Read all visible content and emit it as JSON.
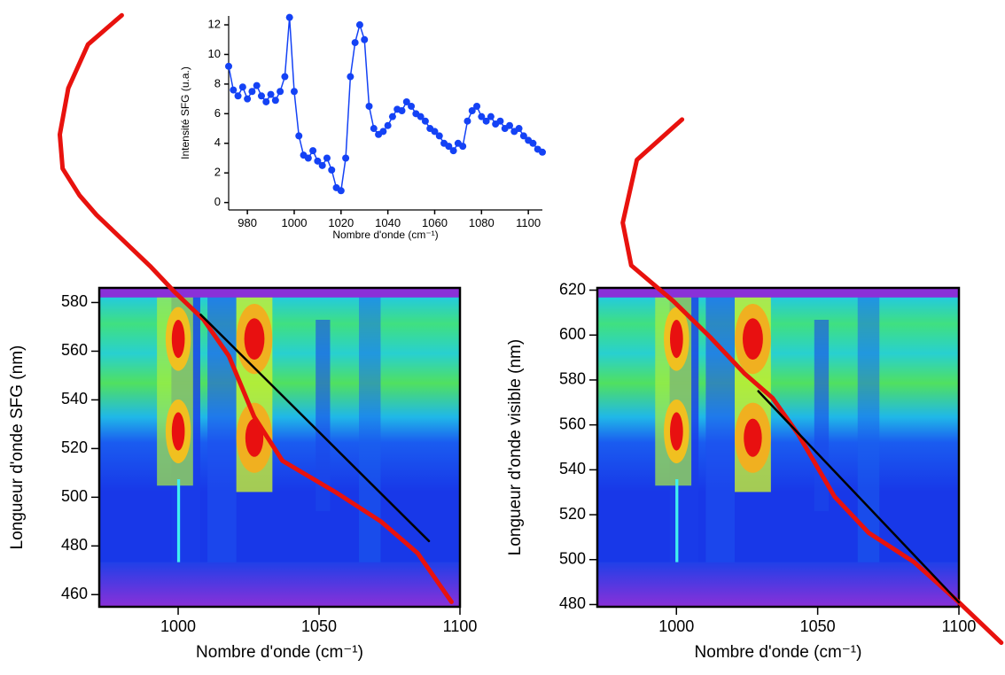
{
  "chart_data": [
    {
      "type": "line",
      "markers": true,
      "x_label": "Nombre d'onde (cm⁻¹)",
      "y_label": "Intensité SFG (u.a.)",
      "x": [
        972,
        974,
        976,
        978,
        980,
        982,
        984,
        986,
        988,
        990,
        992,
        994,
        996,
        998,
        1000,
        1002,
        1004,
        1006,
        1008,
        1010,
        1012,
        1014,
        1016,
        1018,
        1020,
        1022,
        1024,
        1026,
        1028,
        1030,
        1032,
        1034,
        1036,
        1038,
        1040,
        1042,
        1044,
        1046,
        1048,
        1050,
        1052,
        1054,
        1056,
        1058,
        1060,
        1062,
        1064,
        1066,
        1068,
        1070,
        1072,
        1074,
        1076,
        1078,
        1080,
        1082,
        1084,
        1086,
        1088,
        1090,
        1092,
        1094,
        1096,
        1098,
        1100,
        1102,
        1104,
        1106
      ],
      "series": [
        {
          "color": "#1442f5",
          "values": [
            9.2,
            7.6,
            7.2,
            7.8,
            7.0,
            7.5,
            7.9,
            7.2,
            6.8,
            7.3,
            6.9,
            7.5,
            8.5,
            12.5,
            7.5,
            4.5,
            3.2,
            3.0,
            3.5,
            2.8,
            2.5,
            3.0,
            2.2,
            1.0,
            0.8,
            3.0,
            8.5,
            10.8,
            12.0,
            11.0,
            6.5,
            5.0,
            4.6,
            4.8,
            5.2,
            5.8,
            6.3,
            6.2,
            6.8,
            6.5,
            6.0,
            5.8,
            5.5,
            5.0,
            4.8,
            4.5,
            4.0,
            3.8,
            3.5,
            4.0,
            3.8,
            5.5,
            6.2,
            6.5,
            5.8,
            5.5,
            5.8,
            5.3,
            5.5,
            5.0,
            5.2,
            4.8,
            5.0,
            4.5,
            4.2,
            4.0,
            3.6,
            3.4
          ]
        }
      ],
      "xlim": [
        972,
        1106
      ],
      "ylim": [
        -0.5,
        12.6
      ],
      "xticks": [
        980,
        1000,
        1020,
        1040,
        1060,
        1080,
        1100
      ],
      "yticks": [
        0,
        2,
        4,
        6,
        8,
        10,
        12
      ]
    },
    {
      "type": "heatmap",
      "x_label": "Nombre d'onde (cm⁻¹)",
      "y_label": "Longueur d'onde SFG (nm)",
      "xlim": [
        972,
        1100
      ],
      "ylim": [
        455,
        586
      ],
      "xticks": [
        1000,
        1050,
        1100
      ],
      "yticks": [
        460,
        480,
        500,
        520,
        540,
        560,
        580
      ],
      "series": [
        {
          "color": "#e8120e",
          "x": [
            980,
            968,
            961,
            958,
            959,
            965,
            971,
            990,
            999,
            1009,
            1018,
            1027,
            1037,
            1056,
            1072,
            1085,
            1097
          ],
          "values": [
            698,
            686,
            668,
            649,
            635,
            624,
            616,
            595,
            584,
            573,
            558,
            533,
            515,
            502,
            490,
            477,
            457
          ]
        },
        {
          "color": "#000000",
          "x": [
            1008,
            1089
          ],
          "values": [
            575,
            482
          ]
        }
      ]
    },
    {
      "type": "heatmap",
      "x_label": "Nombre d'onde (cm⁻¹)",
      "y_label": "Longueur d'onde visible (nm)",
      "xlim": [
        972,
        1100
      ],
      "ylim": [
        479,
        621
      ],
      "xticks": [
        1000,
        1050,
        1100
      ],
      "yticks": [
        480,
        500,
        520,
        540,
        560,
        580,
        600,
        620
      ],
      "series": [
        {
          "color": "#e8120e",
          "x": [
            1002,
            986,
            981,
            984,
            999,
            1012,
            1024,
            1034,
            1043,
            1056,
            1068,
            1084,
            1100,
            1115
          ],
          "values": [
            696,
            678,
            650,
            631,
            615,
            599,
            583,
            572,
            556,
            528,
            512,
            499,
            481,
            463
          ]
        },
        {
          "color": "#000000",
          "x": [
            1029,
            1100
          ],
          "values": [
            575,
            481
          ]
        }
      ]
    }
  ]
}
